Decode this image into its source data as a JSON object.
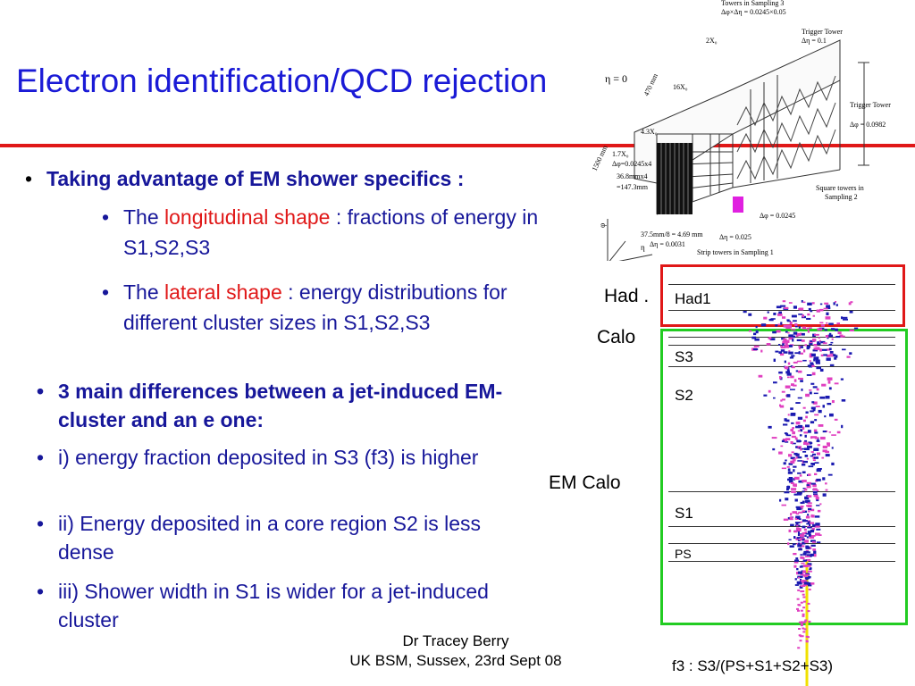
{
  "title": "Electron identification/QCD rejection",
  "bullets_top": {
    "main": "Taking advantage of EM shower specifics :",
    "sub1": {
      "pre": "The ",
      "highlight": "longitudinal shape",
      "post": " : fractions of energy in S1,S2,S3"
    },
    "sub2": {
      "pre": "The ",
      "highlight": "lateral shape",
      "post": " :  energy distributions for different cluster sizes in S1,S2,S3"
    }
  },
  "bullets_bottom": [
    "3 main differences between a jet-induced EM-cluster and an e one:",
    "i) energy fraction deposited in S3 (f3) is higher",
    "ii) Energy deposited in a core region S2 is less dense",
    "iii) Shower width in S1 is wider for a jet-induced cluster"
  ],
  "bullet_char": "•",
  "footer": {
    "line1": "Dr Tracey Berry",
    "line2": "UK BSM, Sussex, 23rd Sept 08"
  },
  "event_display": {
    "had_label": "Had .",
    "calo_label": "Calo",
    "em_calo_label": "EM Calo",
    "layers": {
      "had1": "Had1",
      "s3": "S3",
      "s2": "S2",
      "s1": "S1",
      "ps": "PS"
    },
    "f3_formula": "f3 : S3/(PS+S1+S2+S3)",
    "had_box_color": "#e01818",
    "em_box_color": "#22cc22"
  },
  "detector_diagram": {
    "eta0": "η = 0",
    "towers_s3": "Towers in Sampling 3",
    "towers_s3_size": "Δφ×Δη = 0.0245×0.05",
    "trigger_tower_top": "Trigger Tower",
    "trigger_tower_top_eta": "Δη = 0.1",
    "trigger_tower_side": "Trigger Tower",
    "trigger_tower_side_phi": "Δφ = 0.0982",
    "x0_2": "2X₀",
    "mm_470": "470 mm",
    "x0_16": "16X₀",
    "x0_43": "4.3X₀",
    "mm_1500": "1500 mm",
    "x0_17": "1.7X₀",
    "s1_dphi": "Δφ=0.0245x4",
    "s1_mm1": "36.8mmx4",
    "s1_mm2": "=147.3mm",
    "sq_towers": "Square towers in",
    "sq_towers2": "Sampling 2",
    "dphi_s2": "Δφ = 0.0245",
    "deta_s2": "Δη = 0.025",
    "strip_mm": "37.5mm/8 = 4.69 mm",
    "strip_deta": "Δη = 0.0031",
    "strip_towers": "Strip towers in Sampling 1",
    "axis_phi": "φ",
    "axis_eta": "η"
  }
}
